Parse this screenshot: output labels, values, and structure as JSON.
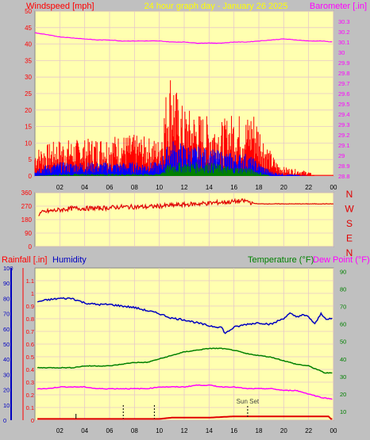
{
  "header": {
    "left_label": "Windspeed [mph]",
    "center_label": "24 hour graph day - January 26 2025",
    "right_label": "Barometer [.in]"
  },
  "colors": {
    "background": "#c0c0c0",
    "plot_bg": "#ffffb0",
    "grid": "#e0c0c0",
    "windspeed": "#ff0000",
    "windspeed_avg": "#0000ff",
    "windspeed_min": "#008000",
    "barometer": "#ff00ff",
    "direction": "#e00000",
    "rainfall": "#e00000",
    "humidity": "#0000c0",
    "temperature": "#008000",
    "dewpoint": "#ff00ff",
    "center_title": "#ffff00"
  },
  "chart_data": [
    {
      "type": "line",
      "name": "wind",
      "title": "24 hour graph day - January 26 2025",
      "x_ticks": [
        "02",
        "04",
        "06",
        "08",
        "10",
        "12",
        "14",
        "16",
        "18",
        "20",
        "22",
        "00"
      ],
      "ylabel": "Windspeed [mph]",
      "ylim": [
        0,
        50
      ],
      "y_ticks": [
        0,
        5,
        10,
        15,
        20,
        25,
        30,
        35,
        40,
        45,
        50
      ],
      "y2label": "Barometer [.in]",
      "y2lim": [
        28.8,
        30.4
      ],
      "y2_ticks": [
        "28.8",
        "28.9",
        "29",
        "29.1",
        "29.2",
        "29.3",
        "29.4",
        "29.5",
        "29.6",
        "29.7",
        "29.8",
        "29.9",
        "30",
        "30.1",
        "30.2",
        "30.3"
      ],
      "series": [
        {
          "name": "Windspeed",
          "color": "#ff0000",
          "x": [
            0,
            2,
            4,
            6,
            8,
            10,
            10.3,
            10.6,
            11,
            11.5,
            12,
            13,
            14,
            15,
            16,
            17,
            17.5,
            18,
            18.5,
            19,
            19.5,
            20,
            21,
            22,
            22.5,
            23,
            24
          ],
          "values": [
            6,
            8,
            8,
            9,
            9,
            8,
            14,
            20,
            25,
            17,
            15,
            14,
            13,
            12,
            14,
            13,
            15,
            12,
            8,
            5,
            3,
            2,
            1.5,
            1,
            0,
            0,
            0
          ]
        },
        {
          "name": "Windspeed avg",
          "color": "#0000ff",
          "x": [
            0,
            2,
            4,
            6,
            8,
            10,
            10.5,
            11,
            12,
            14,
            16,
            17,
            18,
            18.5,
            19,
            20,
            21,
            22
          ],
          "values": [
            2,
            3,
            3,
            3,
            3,
            3,
            6,
            8,
            7,
            6,
            5,
            5,
            3,
            2,
            1,
            0.5,
            0.3,
            0
          ]
        },
        {
          "name": "Windspeed min",
          "color": "#008000",
          "x": [
            0,
            2,
            4,
            6,
            8,
            10,
            10.5,
            11,
            12,
            14,
            16,
            17,
            18,
            19,
            20
          ],
          "values": [
            0,
            0.5,
            0.5,
            0.5,
            0.5,
            0.5,
            2,
            3,
            3,
            3,
            2,
            2,
            1,
            0,
            0
          ]
        },
        {
          "name": "Barometer",
          "color": "#ff00ff",
          "axis": "right",
          "x": [
            0,
            1,
            2,
            3,
            4,
            5,
            6,
            7,
            8,
            9,
            10,
            11,
            12,
            13,
            14,
            15,
            16,
            17,
            18,
            19,
            20,
            21,
            22,
            23,
            24
          ],
          "values": [
            30.19,
            30.17,
            30.15,
            30.14,
            30.13,
            30.12,
            30.12,
            30.11,
            30.11,
            30.11,
            30.11,
            30.1,
            30.1,
            30.09,
            30.09,
            30.09,
            30.1,
            30.1,
            30.11,
            30.12,
            30.13,
            30.12,
            30.11,
            30.11,
            30.1
          ]
        }
      ]
    },
    {
      "type": "scatter",
      "name": "direction",
      "ylabel": "Wind direction",
      "ylim": [
        0,
        360
      ],
      "y_ticks": [
        0,
        90,
        180,
        270,
        360
      ],
      "compass_labels": [
        "N",
        "W",
        "S",
        "E",
        "N"
      ],
      "x_ticks": [
        "02",
        "04",
        "06",
        "08",
        "10",
        "12",
        "14",
        "16",
        "18",
        "20",
        "22",
        "00"
      ],
      "series": [
        {
          "name": "Direction",
          "color": "#e00000",
          "x": [
            0,
            0.5,
            1,
            2,
            3,
            4,
            5,
            6,
            7,
            8,
            9,
            10,
            11,
            12,
            13,
            14,
            15,
            16,
            17,
            17.5,
            18,
            19,
            20,
            21,
            22,
            23,
            24
          ],
          "values": [
            200,
            225,
            235,
            245,
            255,
            255,
            255,
            260,
            265,
            265,
            265,
            270,
            275,
            280,
            285,
            290,
            295,
            300,
            305,
            290,
            285,
            285,
            285,
            285,
            285,
            285,
            285
          ]
        }
      ]
    },
    {
      "type": "line",
      "name": "climate",
      "x_ticks": [
        "02",
        "04",
        "06",
        "08",
        "10",
        "12",
        "14",
        "16",
        "18",
        "20",
        "22",
        "00"
      ],
      "ylabel": "Rainfall [.in]",
      "ylim": [
        0,
        1.2
      ],
      "y_ticks": [
        "0",
        "0.1",
        "0.2",
        "0.3",
        "0.4",
        "0.5",
        "0.6",
        "0.7",
        "0.8",
        "0.9",
        "1",
        "1.1"
      ],
      "humidity_label": "Humidity",
      "humidity_lim": [
        0,
        100
      ],
      "humidity_ticks": [
        0,
        10,
        20,
        30,
        40,
        50,
        60,
        70,
        80,
        90,
        100
      ],
      "temp_label": "Temperature (°F)",
      "dew_label": "Dew Point (°F)",
      "temp_lim": [
        5,
        92
      ],
      "temp_ticks": [
        10,
        20,
        30,
        40,
        50,
        60,
        70,
        80,
        90
      ],
      "annotation": "Sun Set",
      "annotation_x": 17.1,
      "series": [
        {
          "name": "Humidity",
          "color": "#0000c0",
          "axis": "humidity",
          "x": [
            0,
            0.3,
            1,
            2,
            3,
            4,
            5,
            6,
            7,
            8,
            9,
            10,
            11,
            12,
            13,
            14,
            15,
            15.3,
            16,
            17,
            18,
            19,
            20,
            20.5,
            21,
            21.5,
            22,
            22.5,
            23,
            23.5,
            24
          ],
          "values": [
            76,
            78,
            79,
            80,
            80,
            77,
            76,
            76,
            75,
            74,
            72,
            70,
            67,
            66,
            64,
            62,
            61,
            57,
            61,
            63,
            64,
            63,
            67,
            70,
            68,
            69,
            68,
            63,
            70,
            66,
            67
          ]
        },
        {
          "name": "Temperature",
          "color": "#008000",
          "axis": "temp",
          "x": [
            0,
            1,
            2,
            3,
            4,
            5,
            6,
            7,
            8,
            9,
            10,
            11,
            12,
            13,
            14,
            15,
            16,
            17,
            18,
            19,
            20,
            21,
            22,
            23,
            23.3,
            24
          ],
          "values": [
            35,
            35,
            35,
            35,
            36,
            36,
            36,
            37,
            38,
            38,
            40,
            42,
            44,
            45,
            46,
            46,
            45,
            43,
            42,
            41,
            39,
            37,
            36,
            33,
            32,
            32
          ]
        },
        {
          "name": "Dew Point",
          "color": "#ff00ff",
          "axis": "temp",
          "x": [
            0,
            1,
            2,
            3,
            4,
            5,
            6,
            7,
            8,
            9,
            10,
            11,
            12,
            13,
            14,
            15,
            16,
            17,
            18,
            19,
            20,
            21,
            22,
            23,
            24
          ],
          "values": [
            23,
            23,
            24,
            24,
            24,
            23,
            23,
            23,
            23,
            23,
            24,
            24,
            24,
            25,
            25,
            24,
            24,
            23,
            23,
            23,
            22,
            22,
            20,
            18,
            17
          ]
        },
        {
          "name": "Rainfall",
          "color": "#e00000",
          "axis": "rain",
          "x": [
            0,
            10,
            11,
            12,
            14,
            16,
            17,
            23.6,
            23.8,
            24
          ],
          "values": [
            0.01,
            0.01,
            0.02,
            0.02,
            0.02,
            0.03,
            0.03,
            0.03,
            0.01,
            0.01
          ]
        }
      ]
    }
  ]
}
